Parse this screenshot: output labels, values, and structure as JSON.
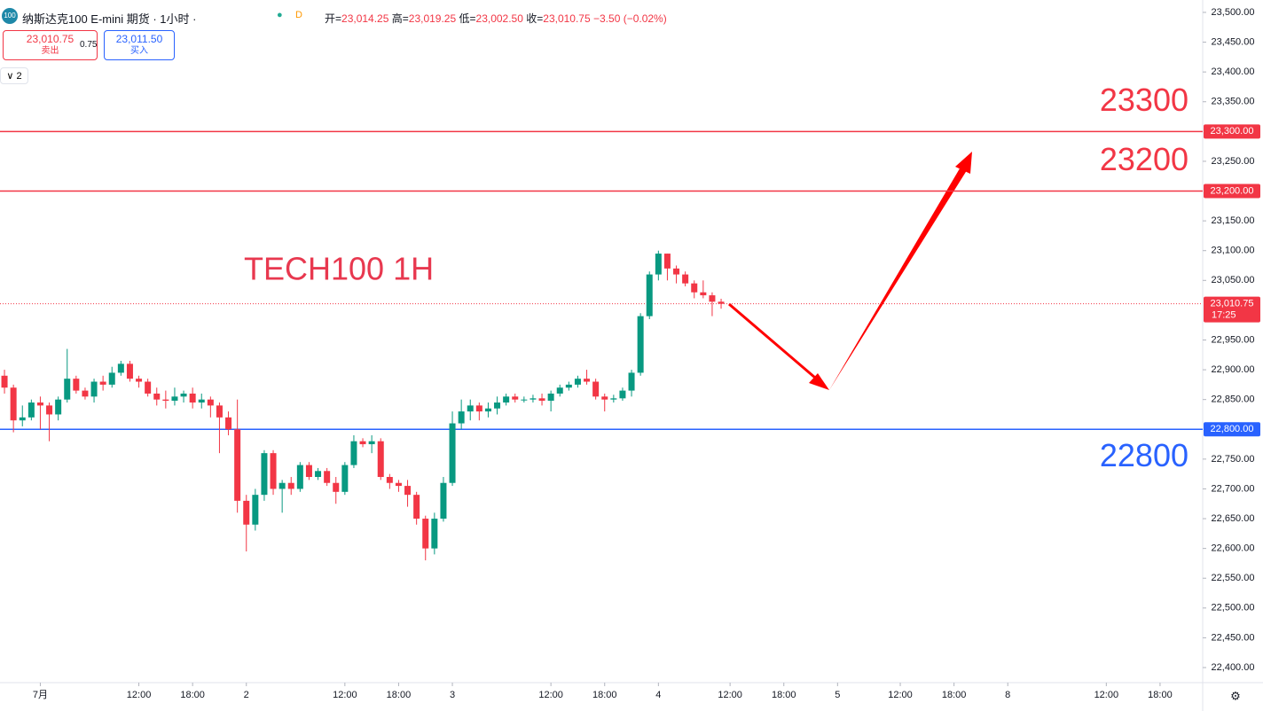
{
  "header": {
    "symbol_icon": "100",
    "title": "纳斯达克100 E-mini 期货 · 1小时 ·",
    "badge": "D",
    "open_label": "开=",
    "open": "23,014.25",
    "high_label": "高=",
    "high": "23,019.25",
    "low_label": "低=",
    "low": "23,002.50",
    "close_label": "收=",
    "close": "23,010.75",
    "change": "−3.50 (−0.02%)",
    "sell_price": "23,010.75",
    "sell_label": "卖出",
    "spread": "0.75",
    "buy_price": "23,011.50",
    "buy_label": "买入",
    "indicators_count": "2"
  },
  "chart_data": {
    "type": "candlestick",
    "up_color": "#089981",
    "down_color": "#f23645",
    "open": [
      22890,
      22870,
      22815,
      22820,
      22845,
      22840,
      22825,
      22850,
      22885,
      22865,
      22855,
      22880,
      22875,
      22895,
      22910,
      22885,
      22880,
      22860,
      22850,
      22848,
      22855,
      22860,
      22845,
      22850,
      22840,
      22820,
      22800,
      22680,
      22640,
      22690,
      22760,
      22700,
      22710,
      22700,
      22740,
      22720,
      22730,
      22710,
      22695,
      22740,
      22780,
      22775,
      22780,
      22720,
      22710,
      22705,
      22690,
      22650,
      22600,
      22650,
      22710,
      22810,
      22830,
      22840,
      22830,
      22835,
      22845,
      22855,
      22850,
      22850,
      22852,
      22848,
      22860,
      22870,
      22875,
      22885,
      22880,
      22855,
      22850,
      22852,
      22865,
      22895,
      22990,
      23060,
      23095,
      23070,
      23060,
      23045,
      23030,
      23025,
      23014.25
    ],
    "high": [
      22900,
      22875,
      22840,
      22850,
      22855,
      22845,
      22855,
      22935,
      22890,
      22870,
      22885,
      22890,
      22905,
      22915,
      22915,
      22890,
      22885,
      22870,
      22865,
      22870,
      22865,
      22870,
      22860,
      22855,
      22845,
      22830,
      22850,
      22690,
      22700,
      22765,
      22765,
      22715,
      22720,
      22745,
      22745,
      22735,
      22735,
      22720,
      22745,
      22790,
      22785,
      22790,
      22785,
      22725,
      22715,
      22715,
      22695,
      22655,
      22660,
      22720,
      22830,
      22850,
      22850,
      22845,
      22845,
      22855,
      22860,
      22860,
      22855,
      22858,
      22860,
      22865,
      22875,
      22880,
      22890,
      22900,
      22885,
      22860,
      22858,
      22870,
      22900,
      22995,
      23065,
      23100,
      23095,
      23075,
      23065,
      23050,
      23050,
      23030,
      23019.25
    ],
    "low": [
      22860,
      22795,
      22805,
      22815,
      22800,
      22780,
      22815,
      22845,
      22860,
      22850,
      22845,
      22865,
      22870,
      22890,
      22880,
      22870,
      22855,
      22840,
      22835,
      22840,
      22845,
      22835,
      22835,
      22820,
      22760,
      22790,
      22660,
      22595,
      22630,
      22680,
      22690,
      22660,
      22690,
      22695,
      22715,
      22715,
      22705,
      22675,
      22690,
      22735,
      22770,
      22760,
      22715,
      22700,
      22695,
      22670,
      22640,
      22580,
      22590,
      22645,
      22705,
      22800,
      22815,
      22815,
      22820,
      22825,
      22840,
      22845,
      22845,
      22845,
      22840,
      22830,
      22855,
      22865,
      22870,
      22875,
      22850,
      22830,
      22845,
      22848,
      22855,
      22890,
      22985,
      23050,
      23050,
      23045,
      23040,
      23020,
      23020,
      22990,
      23002.5
    ],
    "close": [
      22870,
      22815,
      22820,
      22845,
      22840,
      22825,
      22850,
      22885,
      22865,
      22855,
      22880,
      22875,
      22895,
      22910,
      22885,
      22880,
      22860,
      22850,
      22848,
      22855,
      22860,
      22845,
      22850,
      22840,
      22820,
      22800,
      22680,
      22640,
      22690,
      22760,
      22700,
      22710,
      22700,
      22740,
      22720,
      22730,
      22710,
      22695,
      22740,
      22780,
      22775,
      22780,
      22720,
      22710,
      22705,
      22690,
      22650,
      22600,
      22650,
      22710,
      22810,
      22830,
      22840,
      22830,
      22835,
      22845,
      22855,
      22850,
      22850,
      22852,
      22848,
      22860,
      22870,
      22875,
      22885,
      22880,
      22855,
      22850,
      22852,
      22865,
      22895,
      22990,
      23060,
      23095,
      23070,
      23060,
      23045,
      23030,
      23025,
      23014.25,
      23010.75
    ],
    "xlim": [
      -0.5,
      133.66
    ],
    "xticks": [
      {
        "value": 4,
        "label": "7月"
      },
      {
        "value": 15,
        "label": "12:00"
      },
      {
        "value": 21,
        "label": "18:00"
      },
      {
        "value": 27,
        "label": "2"
      },
      {
        "value": 38,
        "label": "12:00"
      },
      {
        "value": 44,
        "label": "18:00"
      },
      {
        "value": 50,
        "label": "3"
      },
      {
        "value": 61,
        "label": "12:00"
      },
      {
        "value": 67,
        "label": "18:00"
      },
      {
        "value": 73,
        "label": "4"
      },
      {
        "value": 81,
        "label": "12:00"
      },
      {
        "value": 87,
        "label": "18:00"
      },
      {
        "value": 93,
        "label": "5"
      },
      {
        "value": 100,
        "label": "12:00"
      },
      {
        "value": 106,
        "label": "18:00"
      },
      {
        "value": 112,
        "label": "8"
      },
      {
        "value": 123,
        "label": "12:00"
      },
      {
        "value": 129,
        "label": "18:00"
      }
    ],
    "ylim": [
      22374.7,
      23520.8
    ],
    "yticks": [
      {
        "value": 23500,
        "label": "23,500.00"
      },
      {
        "value": 23450,
        "label": "23,450.00"
      },
      {
        "value": 23400,
        "label": "23,400.00"
      },
      {
        "value": 23350,
        "label": "23,350.00"
      },
      {
        "value": 23250,
        "label": "23,250.00"
      },
      {
        "value": 23150,
        "label": "23,150.00"
      },
      {
        "value": 23100,
        "label": "23,100.00"
      },
      {
        "value": 23050,
        "label": "23,050.00"
      },
      {
        "value": 22950,
        "label": "22,950.00"
      },
      {
        "value": 22900,
        "label": "22,900.00"
      },
      {
        "value": 22850,
        "label": "22,850.00"
      },
      {
        "value": 22750,
        "label": "22,750.00"
      },
      {
        "value": 22700,
        "label": "22,700.00"
      },
      {
        "value": 22650,
        "label": "22,650.00"
      },
      {
        "value": 22600,
        "label": "22,600.00"
      },
      {
        "value": 22550,
        "label": "22,550.00"
      },
      {
        "value": 22500,
        "label": "22,500.00"
      },
      {
        "value": 22450,
        "label": "22,450.00"
      },
      {
        "value": 22400,
        "label": "22,400.00"
      }
    ],
    "levels": [
      {
        "value": 23300,
        "label": "23,300.00",
        "text": "23300",
        "color": "#f23645"
      },
      {
        "value": 23200,
        "label": "23,200.00",
        "text": "23200",
        "color": "#f23645"
      },
      {
        "value": 22800,
        "label": "22,800.00",
        "text": "22800",
        "color": "#2962ff"
      }
    ],
    "last_price": {
      "value": 23010.75,
      "label": "23,010.75",
      "countdown": "17:25",
      "color": "#f23645"
    },
    "annotation": "TECH100 1H"
  }
}
